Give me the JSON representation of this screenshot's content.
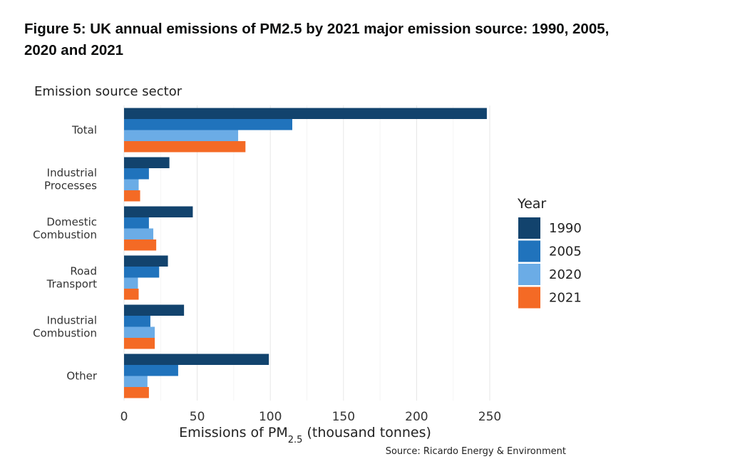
{
  "title": "Figure 5: UK annual emissions of PM2.5 by 2021 major emission source: 1990, 2005, 2020 and 2021",
  "source": "Source: Ricardo Energy & Environment",
  "chart_data": {
    "type": "bar",
    "orientation": "horizontal",
    "y_axis_title": "Emission source sector",
    "xlabel": "Emissions of PM",
    "xlabel_subscript": "2.5",
    "xlabel_suffix": " (thousand tonnes)",
    "xlim": [
      0,
      250
    ],
    "xticks": [
      0,
      50,
      100,
      150,
      200,
      250
    ],
    "grid": true,
    "legend_title": "Year",
    "legend_position": "right",
    "categories": [
      [
        "Total"
      ],
      [
        "Industrial",
        "Processes"
      ],
      [
        "Domestic",
        "Combustion"
      ],
      [
        "Road",
        "Transport"
      ],
      [
        "Industrial",
        "Combustion"
      ],
      [
        "Other"
      ]
    ],
    "series": [
      {
        "name": "1990",
        "color": "#12436d",
        "values": [
          248,
          31,
          47,
          30,
          41,
          99
        ]
      },
      {
        "name": "2005",
        "color": "#2073bc",
        "values": [
          115,
          17,
          17,
          24,
          18,
          37
        ]
      },
      {
        "name": "2020",
        "color": "#6bace6",
        "values": [
          78,
          10,
          20,
          9.5,
          21,
          16
        ]
      },
      {
        "name": "2021",
        "color": "#f46a25",
        "values": [
          83,
          11,
          22,
          10,
          21,
          17
        ]
      }
    ]
  }
}
